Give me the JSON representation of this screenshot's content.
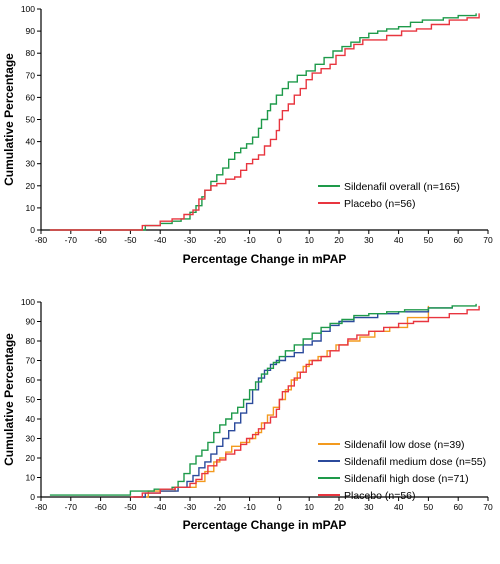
{
  "chart_data": [
    {
      "type": "line",
      "xlabel": "Percentage Change in mPAP",
      "ylabel": "Cumulative Percentage",
      "xlim": [
        -80,
        70
      ],
      "ylim": [
        0,
        100
      ],
      "x_ticks": [
        -80,
        -70,
        -60,
        -50,
        -40,
        -30,
        -20,
        -10,
        0,
        10,
        20,
        30,
        40,
        50,
        60,
        70
      ],
      "y_ticks": [
        0,
        10,
        20,
        30,
        40,
        50,
        60,
        70,
        80,
        90,
        100
      ],
      "legend_position": "right",
      "series": [
        {
          "name": "Sildenafil overall (n=165)",
          "color": "#1e9a4a",
          "points": [
            [
              -77,
              0
            ],
            [
              -48,
              0
            ],
            [
              -45,
              2
            ],
            [
              -40,
              3
            ],
            [
              -36,
              4
            ],
            [
              -33,
              5
            ],
            [
              -30,
              8
            ],
            [
              -28,
              11
            ],
            [
              -26,
              15
            ],
            [
              -25,
              18
            ],
            [
              -23,
              22
            ],
            [
              -21,
              25
            ],
            [
              -19,
              28
            ],
            [
              -17,
              32
            ],
            [
              -15,
              35
            ],
            [
              -13,
              37
            ],
            [
              -11,
              39
            ],
            [
              -9,
              42
            ],
            [
              -7,
              46
            ],
            [
              -6,
              50
            ],
            [
              -4,
              54
            ],
            [
              -3,
              57
            ],
            [
              -1,
              61
            ],
            [
              1,
              64
            ],
            [
              3,
              67
            ],
            [
              6,
              70
            ],
            [
              9,
              72
            ],
            [
              12,
              75
            ],
            [
              15,
              78
            ],
            [
              18,
              81
            ],
            [
              21,
              83
            ],
            [
              24,
              85
            ],
            [
              27,
              87
            ],
            [
              30,
              89
            ],
            [
              33,
              90
            ],
            [
              36,
              91
            ],
            [
              40,
              92
            ],
            [
              44,
              94
            ],
            [
              48,
              95
            ],
            [
              55,
              96
            ],
            [
              60,
              97
            ],
            [
              66,
              98
            ]
          ]
        },
        {
          "name": "Placebo (n=56)",
          "color": "#e8353f",
          "points": [
            [
              -77,
              0
            ],
            [
              -50,
              0
            ],
            [
              -46,
              2
            ],
            [
              -40,
              4
            ],
            [
              -36,
              5
            ],
            [
              -32,
              7
            ],
            [
              -29,
              9
            ],
            [
              -27,
              14
            ],
            [
              -25,
              18
            ],
            [
              -23,
              20
            ],
            [
              -21,
              21
            ],
            [
              -18,
              23
            ],
            [
              -15,
              24
            ],
            [
              -13,
              27
            ],
            [
              -11,
              30
            ],
            [
              -9,
              32
            ],
            [
              -7,
              34
            ],
            [
              -5,
              38
            ],
            [
              -3,
              41
            ],
            [
              -1,
              45
            ],
            [
              0,
              50
            ],
            [
              1,
              54
            ],
            [
              3,
              57
            ],
            [
              5,
              61
            ],
            [
              7,
              64
            ],
            [
              9,
              68
            ],
            [
              11,
              71
            ],
            [
              14,
              73
            ],
            [
              17,
              75
            ],
            [
              19,
              79
            ],
            [
              22,
              82
            ],
            [
              25,
              84
            ],
            [
              28,
              86
            ],
            [
              36,
              88
            ],
            [
              41,
              90
            ],
            [
              46,
              91
            ],
            [
              51,
              93
            ],
            [
              57,
              95
            ],
            [
              63,
              96
            ],
            [
              67,
              98
            ]
          ]
        }
      ]
    },
    {
      "type": "line",
      "xlabel": "Percentage Change in mPAP",
      "ylabel": "Cumulative Percentage",
      "xlim": [
        -80,
        70
      ],
      "ylim": [
        0,
        100
      ],
      "x_ticks": [
        -80,
        -70,
        -60,
        -50,
        -40,
        -30,
        -20,
        -10,
        0,
        10,
        20,
        30,
        40,
        50,
        60,
        70
      ],
      "y_ticks": [
        0,
        10,
        20,
        30,
        40,
        50,
        60,
        70,
        80,
        90,
        100
      ],
      "legend_position": "right",
      "series": [
        {
          "name": "Sildenafil low dose (n=39)",
          "color": "#f39a1e",
          "points": [
            [
              -49,
              0
            ],
            [
              -44,
              3
            ],
            [
              -35,
              5
            ],
            [
              -28,
              8
            ],
            [
              -25,
              13
            ],
            [
              -22,
              18
            ],
            [
              -20,
              20
            ],
            [
              -18,
              23
            ],
            [
              -16,
              26
            ],
            [
              -13,
              28
            ],
            [
              -10,
              30
            ],
            [
              -8,
              33
            ],
            [
              -6,
              38
            ],
            [
              -4,
              42
            ],
            [
              -2,
              46
            ],
            [
              0,
              50
            ],
            [
              2,
              55
            ],
            [
              4,
              60
            ],
            [
              6,
              64
            ],
            [
              8,
              67
            ],
            [
              10,
              70
            ],
            [
              13,
              72
            ],
            [
              16,
              75
            ],
            [
              19,
              78
            ],
            [
              23,
              80
            ],
            [
              27,
              82
            ],
            [
              32,
              85
            ],
            [
              37,
              87
            ],
            [
              43,
              92
            ],
            [
              50,
              98
            ]
          ]
        },
        {
          "name": "Sildenafil medium dose (n=55)",
          "color": "#2b4a9c",
          "points": [
            [
              -49,
              0
            ],
            [
              -45,
              2
            ],
            [
              -40,
              3
            ],
            [
              -34,
              5
            ],
            [
              -31,
              8
            ],
            [
              -29,
              11
            ],
            [
              -27,
              15
            ],
            [
              -25,
              18
            ],
            [
              -23,
              22
            ],
            [
              -21,
              26
            ],
            [
              -19,
              30
            ],
            [
              -17,
              34
            ],
            [
              -15,
              38
            ],
            [
              -13,
              43
            ],
            [
              -11,
              48
            ],
            [
              -9,
              55
            ],
            [
              -7,
              61
            ],
            [
              -5,
              65
            ],
            [
              -3,
              68
            ],
            [
              -1,
              70
            ],
            [
              2,
              72
            ],
            [
              5,
              74
            ],
            [
              8,
              78
            ],
            [
              11,
              80
            ],
            [
              14,
              85
            ],
            [
              17,
              88
            ],
            [
              20,
              90
            ],
            [
              25,
              92
            ],
            [
              33,
              94
            ],
            [
              40,
              95
            ],
            [
              50,
              97
            ],
            [
              58,
              98
            ]
          ]
        },
        {
          "name": "Sildenafil high dose (n=71)",
          "color": "#1e9a4a",
          "points": [
            [
              -77,
              1
            ],
            [
              -57,
              1
            ],
            [
              -50,
              3
            ],
            [
              -42,
              4
            ],
            [
              -36,
              5
            ],
            [
              -34,
              8
            ],
            [
              -32,
              12
            ],
            [
              -30,
              17
            ],
            [
              -28,
              21
            ],
            [
              -26,
              24
            ],
            [
              -24,
              28
            ],
            [
              -22,
              33
            ],
            [
              -20,
              37
            ],
            [
              -18,
              40
            ],
            [
              -16,
              43
            ],
            [
              -14,
              46
            ],
            [
              -12,
              50
            ],
            [
              -10,
              55
            ],
            [
              -8,
              59
            ],
            [
              -6,
              63
            ],
            [
              -4,
              66
            ],
            [
              -2,
              69
            ],
            [
              0,
              72
            ],
            [
              2,
              75
            ],
            [
              5,
              78
            ],
            [
              8,
              81
            ],
            [
              11,
              84
            ],
            [
              14,
              87
            ],
            [
              17,
              89
            ],
            [
              21,
              91
            ],
            [
              25,
              93
            ],
            [
              30,
              94
            ],
            [
              36,
              95
            ],
            [
              42,
              96
            ],
            [
              50,
              97
            ],
            [
              58,
              98
            ],
            [
              66,
              99
            ]
          ]
        },
        {
          "name": "Placebo (n=56)",
          "color": "#e8353f",
          "points": [
            [
              -50,
              0
            ],
            [
              -46,
              2
            ],
            [
              -40,
              4
            ],
            [
              -35,
              5
            ],
            [
              -30,
              7
            ],
            [
              -28,
              9
            ],
            [
              -26,
              12
            ],
            [
              -24,
              16
            ],
            [
              -21,
              19
            ],
            [
              -18,
              22
            ],
            [
              -15,
              24
            ],
            [
              -13,
              27
            ],
            [
              -11,
              30
            ],
            [
              -9,
              32
            ],
            [
              -7,
              35
            ],
            [
              -5,
              38
            ],
            [
              -3,
              41
            ],
            [
              -1,
              45
            ],
            [
              0,
              50
            ],
            [
              1,
              54
            ],
            [
              3,
              57
            ],
            [
              5,
              61
            ],
            [
              7,
              64
            ],
            [
              9,
              68
            ],
            [
              11,
              70
            ],
            [
              14,
              72
            ],
            [
              17,
              75
            ],
            [
              20,
              78
            ],
            [
              23,
              81
            ],
            [
              26,
              83
            ],
            [
              30,
              85
            ],
            [
              35,
              87
            ],
            [
              40,
              89
            ],
            [
              45,
              90
            ],
            [
              50,
              92
            ],
            [
              57,
              94
            ],
            [
              63,
              96
            ],
            [
              67,
              98
            ]
          ]
        }
      ]
    }
  ]
}
